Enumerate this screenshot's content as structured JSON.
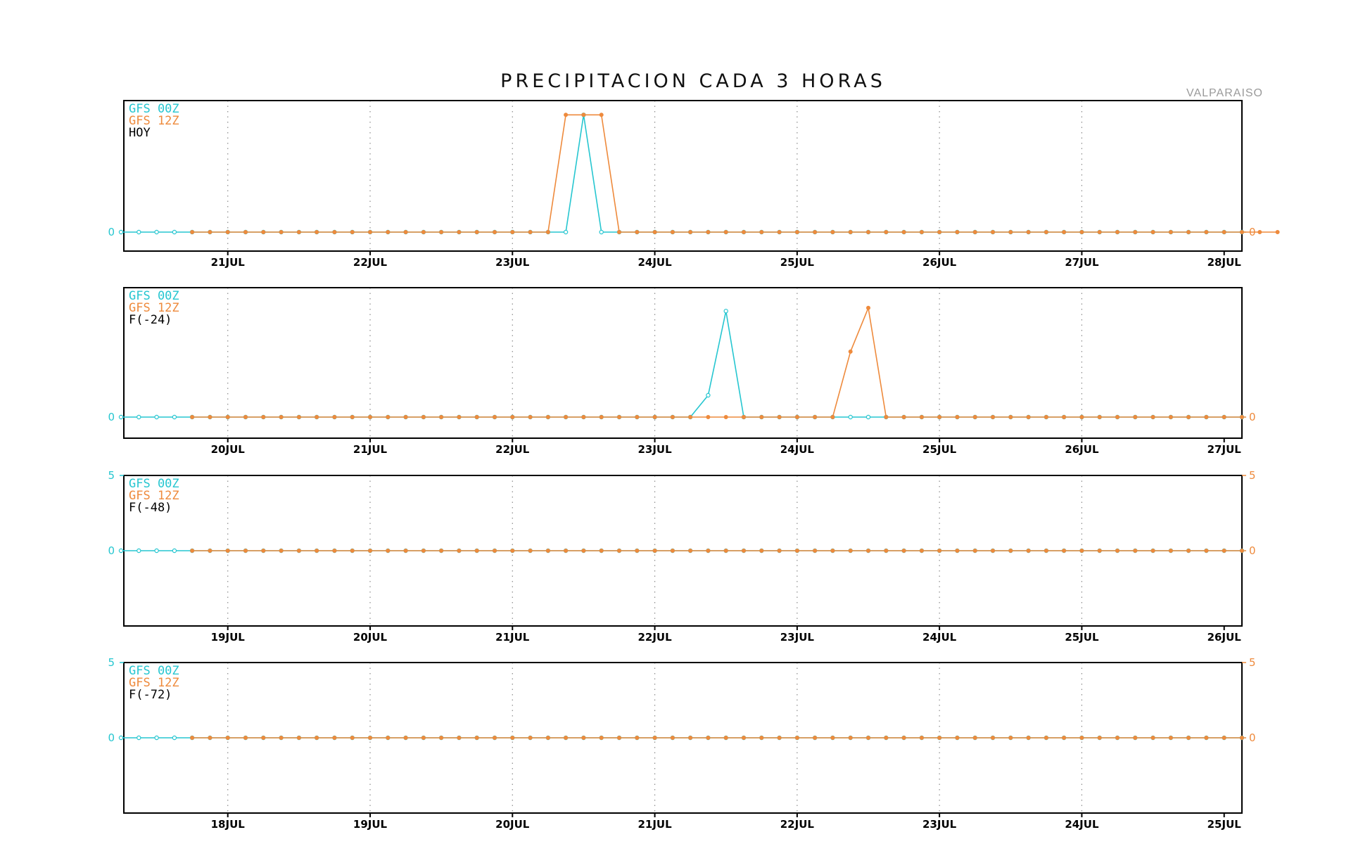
{
  "title": "PRECIPITACION CADA 3 HORAS",
  "station": "VALPARAISO",
  "colors": {
    "gfs00": "#26c6d0",
    "gfs12": "#ee8a3c",
    "frame": "#000000",
    "grid": "#8a8a8a"
  },
  "chart_data": [
    {
      "type": "line",
      "panel_label": "HOY",
      "legend": [
        "GFS 00Z",
        "GFS 12Z"
      ],
      "x_tick_labels": [
        "21JUL",
        "22JUL",
        "23JUL",
        "24JUL",
        "25JUL",
        "26JUL",
        "27JUL",
        "28JUL"
      ],
      "y_left_ticks": [
        "0"
      ],
      "y_right_ticks": [
        "0"
      ],
      "ylim": [
        -1.2,
        8.3
      ],
      "grid": "dotted vertical at each day",
      "series": [
        {
          "name": "GFS 00Z",
          "start_step": 0,
          "step_hours": 3,
          "values": [
            0,
            0,
            0,
            0,
            0,
            0,
            0,
            0,
            0,
            0,
            0,
            0,
            0,
            0,
            0,
            0,
            0,
            0,
            0,
            0,
            0,
            0,
            0,
            0,
            0,
            0,
            7.4,
            0,
            0,
            0,
            0,
            0,
            0,
            0,
            0,
            0,
            0,
            0,
            0,
            0,
            0,
            0,
            0,
            0,
            0,
            0,
            0,
            0,
            0,
            0,
            0,
            0,
            0,
            0,
            0,
            0,
            0,
            0,
            0,
            0,
            0,
            0,
            0,
            0
          ]
        },
        {
          "name": "GFS 12Z",
          "start_step": 4,
          "step_hours": 3,
          "values": [
            0,
            0,
            0,
            0,
            0,
            0,
            0,
            0,
            0,
            0,
            0,
            0,
            0,
            0,
            0,
            0,
            0,
            0,
            0,
            0,
            0,
            7.4,
            7.4,
            7.4,
            0,
            0,
            0,
            0,
            0,
            0,
            0,
            0,
            0,
            0,
            0,
            0,
            0,
            0,
            0,
            0,
            0,
            0,
            0,
            0,
            0,
            0,
            0,
            0,
            0,
            0,
            0,
            0,
            0,
            0,
            0,
            0,
            0,
            0,
            0,
            0,
            0,
            0
          ]
        }
      ]
    },
    {
      "type": "line",
      "panel_label": "F(-24)",
      "legend": [
        "GFS 00Z",
        "GFS 12Z"
      ],
      "x_tick_labels": [
        "20JUL",
        "21JUL",
        "22JUL",
        "23JUL",
        "24JUL",
        "25JUL",
        "26JUL",
        "27JUL"
      ],
      "y_left_ticks": [
        "0"
      ],
      "y_right_ticks": [
        "0"
      ],
      "ylim": [
        -1.2,
        8.3
      ],
      "grid": "dotted vertical at each day",
      "series": [
        {
          "name": "GFS 00Z",
          "start_step": 0,
          "step_hours": 3,
          "values": [
            0,
            0,
            0,
            0,
            0,
            0,
            0,
            0,
            0,
            0,
            0,
            0,
            0,
            0,
            0,
            0,
            0,
            0,
            0,
            0,
            0,
            0,
            0,
            0,
            0,
            0,
            0,
            0,
            0,
            0,
            0,
            0,
            0,
            1.4,
            6.8,
            0,
            0,
            0,
            0,
            0,
            0,
            0,
            0,
            0,
            0,
            0,
            0,
            0,
            0,
            0,
            0,
            0,
            0,
            0,
            0,
            0,
            0,
            0,
            0,
            0,
            0,
            0,
            0,
            0
          ]
        },
        {
          "name": "GFS 12Z",
          "start_step": 4,
          "step_hours": 3,
          "values": [
            0,
            0,
            0,
            0,
            0,
            0,
            0,
            0,
            0,
            0,
            0,
            0,
            0,
            0,
            0,
            0,
            0,
            0,
            0,
            0,
            0,
            0,
            0,
            0,
            0,
            0,
            0,
            0,
            0,
            0,
            0,
            0,
            0,
            0,
            0,
            0,
            0,
            4.2,
            7.0,
            0,
            0,
            0,
            0,
            0,
            0,
            0,
            0,
            0,
            0,
            0,
            0,
            0,
            0,
            0,
            0,
            0,
            0,
            0,
            0,
            0
          ]
        }
      ]
    },
    {
      "type": "line",
      "panel_label": "F(-48)",
      "legend": [
        "GFS 00Z",
        "GFS 12Z"
      ],
      "x_tick_labels": [
        "19JUL",
        "20JUL",
        "21JUL",
        "22JUL",
        "23JUL",
        "24JUL",
        "25JUL",
        "26JUL"
      ],
      "y_left_ticks": [
        "5",
        "0"
      ],
      "y_right_ticks": [
        "5",
        "0"
      ],
      "ylim": [
        -5,
        5
      ],
      "grid": "dotted vertical at each day",
      "series": [
        {
          "name": "GFS 00Z",
          "start_step": 0,
          "step_hours": 3,
          "values": [
            0,
            0,
            0,
            0,
            0,
            0,
            0,
            0,
            0,
            0,
            0,
            0,
            0,
            0,
            0,
            0,
            0,
            0,
            0,
            0,
            0,
            0,
            0,
            0,
            0,
            0,
            0,
            0,
            0,
            0,
            0,
            0,
            0,
            0,
            0,
            0,
            0,
            0,
            0,
            0,
            0,
            0,
            0,
            0,
            0,
            0,
            0,
            0,
            0,
            0,
            0,
            0,
            0,
            0,
            0,
            0,
            0,
            0,
            0,
            0,
            0,
            0,
            0,
            0
          ]
        },
        {
          "name": "GFS 12Z",
          "start_step": 4,
          "step_hours": 3,
          "values": [
            0,
            0,
            0,
            0,
            0,
            0,
            0,
            0,
            0,
            0,
            0,
            0,
            0,
            0,
            0,
            0,
            0,
            0,
            0,
            0,
            0,
            0,
            0,
            0,
            0,
            0,
            0,
            0,
            0,
            0,
            0,
            0,
            0,
            0,
            0,
            0,
            0,
            0,
            0,
            0,
            0,
            0,
            0,
            0,
            0,
            0,
            0,
            0,
            0,
            0,
            0,
            0,
            0,
            0,
            0,
            0,
            0,
            0,
            0,
            0
          ]
        }
      ]
    },
    {
      "type": "line",
      "panel_label": "F(-72)",
      "legend": [
        "GFS 00Z",
        "GFS 12Z"
      ],
      "x_tick_labels": [
        "18JUL",
        "19JUL",
        "20JUL",
        "21JUL",
        "22JUL",
        "23JUL",
        "24JUL",
        "25JUL"
      ],
      "y_left_ticks": [
        "5",
        "0"
      ],
      "y_right_ticks": [
        "5",
        "0"
      ],
      "ylim": [
        -5,
        5
      ],
      "grid": "dotted vertical at each day",
      "series": [
        {
          "name": "GFS 00Z",
          "start_step": 0,
          "step_hours": 3,
          "values": [
            0,
            0,
            0,
            0,
            0,
            0,
            0,
            0,
            0,
            0,
            0,
            0,
            0,
            0,
            0,
            0,
            0,
            0,
            0,
            0,
            0,
            0,
            0,
            0,
            0,
            0,
            0,
            0,
            0,
            0,
            0,
            0,
            0,
            0,
            0,
            0,
            0,
            0,
            0,
            0,
            0,
            0,
            0,
            0,
            0,
            0,
            0,
            0,
            0,
            0,
            0,
            0,
            0,
            0,
            0,
            0,
            0,
            0,
            0,
            0,
            0,
            0,
            0,
            0
          ]
        },
        {
          "name": "GFS 12Z",
          "start_step": 4,
          "step_hours": 3,
          "values": [
            0,
            0,
            0,
            0,
            0,
            0,
            0,
            0,
            0,
            0,
            0,
            0,
            0,
            0,
            0,
            0,
            0,
            0,
            0,
            0,
            0,
            0,
            0,
            0,
            0,
            0,
            0,
            0,
            0,
            0,
            0,
            0,
            0,
            0,
            0,
            0,
            0,
            0,
            0,
            0,
            0,
            0,
            0,
            0,
            0,
            0,
            0,
            0,
            0,
            0,
            0,
            0,
            0,
            0,
            0,
            0,
            0,
            0,
            0,
            0
          ]
        }
      ]
    }
  ]
}
